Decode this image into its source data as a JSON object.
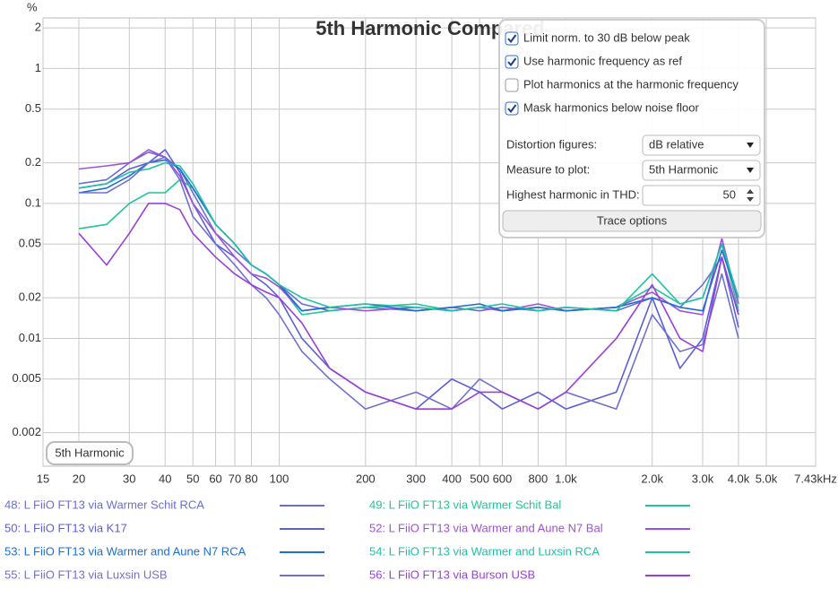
{
  "chart_data": {
    "type": "line",
    "title": "5th Harmonic Compared",
    "y_unit": "%",
    "log_x": true,
    "log_y": true,
    "grid": true,
    "xlim": [
      15,
      7430
    ],
    "ylim": [
      0.00113,
      2.37
    ],
    "xticks": [
      15,
      20,
      30,
      40,
      50,
      60,
      70,
      80,
      100,
      200,
      300,
      400,
      500,
      600,
      800,
      {
        "value": 1000,
        "label": "1.0k"
      },
      {
        "value": 2000,
        "label": "2.0k"
      },
      {
        "value": 3000,
        "label": "3.0k"
      },
      {
        "value": 4000,
        "label": "4.0k"
      },
      {
        "value": 5000,
        "label": "5.0k"
      },
      {
        "value": 7430,
        "label": "7.43kHz"
      }
    ],
    "yticks": [
      2,
      1,
      0.5,
      0.2,
      0.1,
      0.05,
      0.02,
      0.01,
      0.005,
      0.002
    ],
    "x": [
      20,
      25,
      30,
      35,
      40,
      45,
      50,
      60,
      70,
      80,
      90,
      100,
      120,
      150,
      200,
      300,
      400,
      500,
      600,
      800,
      1000,
      1500,
      2000,
      2500,
      3000,
      3500,
      4000
    ],
    "series": [
      {
        "name": "48: L FiiO FT13 via Warmer Schit RCA",
        "color": "#6a6fd0",
        "values": [
          0.14,
          0.15,
          0.2,
          0.24,
          0.22,
          0.18,
          0.12,
          0.06,
          0.045,
          0.035,
          0.03,
          0.025,
          0.018,
          0.016,
          0.017,
          0.016,
          0.017,
          0.016,
          0.017,
          0.016,
          0.017,
          0.016,
          0.02,
          0.017,
          0.025,
          0.04,
          0.015
        ]
      },
      {
        "name": "49: L FiiO FT13 via Warmer Schit Bal",
        "color": "#22c49a",
        "values": [
          0.065,
          0.07,
          0.1,
          0.12,
          0.12,
          0.15,
          0.13,
          0.07,
          0.05,
          0.035,
          0.03,
          0.025,
          0.015,
          0.016,
          0.017,
          0.018,
          0.016,
          0.017,
          0.016,
          0.017,
          0.016,
          0.017,
          0.024,
          0.018,
          0.02,
          0.05,
          0.016
        ]
      },
      {
        "name": "50: L FiiO FT13 via K17",
        "color": "#5a5fd8",
        "values": [
          0.13,
          0.14,
          0.18,
          0.2,
          0.25,
          0.17,
          0.1,
          0.05,
          0.04,
          0.03,
          0.025,
          0.02,
          0.01,
          0.006,
          0.004,
          0.003,
          0.005,
          0.004,
          0.003,
          0.004,
          0.003,
          0.004,
          0.02,
          0.006,
          0.01,
          0.04,
          0.012
        ]
      },
      {
        "name": "52: L FiiO FT13 via Warmer and Aune N7 Bal",
        "color": "#a050d8",
        "values": [
          0.18,
          0.19,
          0.2,
          0.25,
          0.22,
          0.16,
          0.1,
          0.06,
          0.04,
          0.03,
          0.028,
          0.024,
          0.016,
          0.017,
          0.016,
          0.017,
          0.016,
          0.017,
          0.016,
          0.018,
          0.016,
          0.017,
          0.022,
          0.016,
          0.015,
          0.055,
          0.018
        ]
      },
      {
        "name": "53: L FiiO FT13 via Warmer and Aune N7 RCA",
        "color": "#1e6fd0",
        "values": [
          0.12,
          0.13,
          0.16,
          0.2,
          0.21,
          0.18,
          0.13,
          0.07,
          0.05,
          0.035,
          0.03,
          0.025,
          0.016,
          0.017,
          0.018,
          0.016,
          0.017,
          0.018,
          0.016,
          0.017,
          0.016,
          0.017,
          0.02,
          0.017,
          0.016,
          0.045,
          0.02
        ]
      },
      {
        "name": "54: L FiiO FT13 via Warmer and Luxsin RCA",
        "color": "#20c0a8",
        "values": [
          0.13,
          0.14,
          0.17,
          0.18,
          0.2,
          0.19,
          0.14,
          0.07,
          0.05,
          0.035,
          0.03,
          0.025,
          0.02,
          0.017,
          0.018,
          0.017,
          0.016,
          0.017,
          0.018,
          0.016,
          0.017,
          0.016,
          0.03,
          0.018,
          0.02,
          0.05,
          0.02
        ]
      },
      {
        "name": "55: L FiiO FT13 via Luxsin USB",
        "color": "#7070d0",
        "values": [
          0.12,
          0.12,
          0.15,
          0.2,
          0.22,
          0.15,
          0.08,
          0.05,
          0.035,
          0.025,
          0.02,
          0.015,
          0.008,
          0.005,
          0.003,
          0.004,
          0.003,
          0.005,
          0.004,
          0.003,
          0.004,
          0.003,
          0.015,
          0.008,
          0.009,
          0.03,
          0.01
        ]
      },
      {
        "name": "56: L FiiO FT13 via Burson USB",
        "color": "#9a40d8",
        "values": [
          0.06,
          0.035,
          0.06,
          0.1,
          0.1,
          0.09,
          0.06,
          0.04,
          0.03,
          0.025,
          0.022,
          0.02,
          0.013,
          0.006,
          0.004,
          0.003,
          0.003,
          0.004,
          0.004,
          0.003,
          0.004,
          0.01,
          0.025,
          0.01,
          0.008,
          0.04,
          0.015
        ]
      }
    ]
  },
  "badge": "5th Harmonic",
  "panel": {
    "checkboxes": [
      {
        "label": "Limit norm. to 30 dB below peak",
        "checked": true
      },
      {
        "label": "Use harmonic frequency as ref",
        "checked": true
      },
      {
        "label": "Plot harmonics at the harmonic frequency",
        "checked": false
      },
      {
        "label": "Mask harmonics below noise floor",
        "checked": true
      }
    ],
    "dropdowns": [
      {
        "label": "Distortion figures:",
        "value": "dB relative"
      },
      {
        "label": "Measure to plot:",
        "value": "5th Harmonic"
      }
    ],
    "spinner": {
      "label": "Highest harmonic in THD:",
      "value": 50
    },
    "button": "Trace options"
  }
}
